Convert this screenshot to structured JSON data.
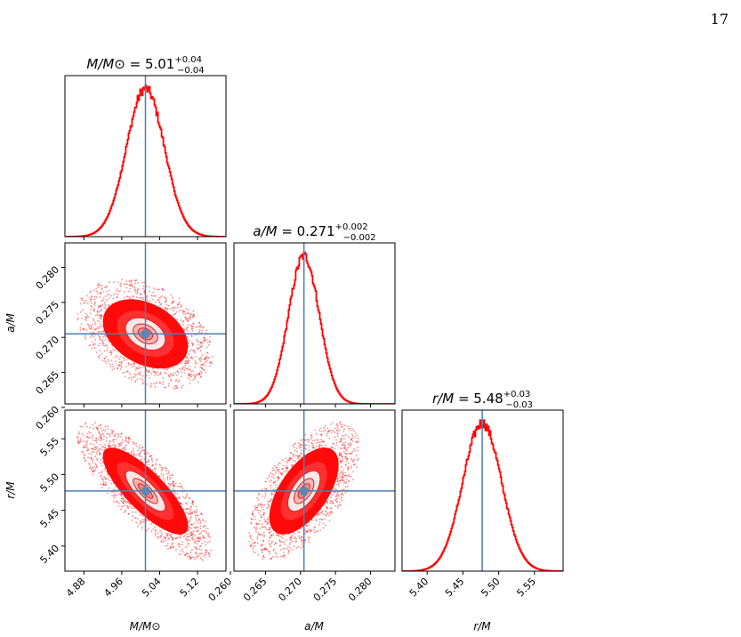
{
  "page": {
    "number": "17"
  },
  "colors": {
    "posterior": "#ff0000",
    "truth": "#4a7fb5",
    "truth_marker": "#5b86b5"
  },
  "chart_data": {
    "type": "corner",
    "parameters": [
      {
        "id": "M",
        "label": "M/M⊙",
        "title_name": "M/M⊙",
        "title_value": "5.01",
        "title_plus": "+0.04",
        "title_minus": "−0.04",
        "mean": 5.01,
        "sigma": 0.04,
        "truth": 5.01,
        "range": [
          4.84,
          5.18
        ],
        "ticks": [
          4.88,
          4.96,
          5.04,
          5.12
        ],
        "tick_labels": [
          "4.88",
          "4.96",
          "5.04",
          "5.12"
        ]
      },
      {
        "id": "a",
        "label": "a/M",
        "title_name": "a/M",
        "title_value": "0.271",
        "title_plus": "+0.002",
        "title_minus": "−0.002",
        "mean": 0.2705,
        "sigma": 0.0022,
        "truth": 0.2705,
        "range": [
          0.2605,
          0.2835
        ],
        "ticks": [
          0.26,
          0.265,
          0.27,
          0.275,
          0.28
        ],
        "tick_labels": [
          "0.260",
          "0.265",
          "0.270",
          "0.275",
          "0.280"
        ]
      },
      {
        "id": "r",
        "label": "r/M",
        "title_name": "r/M",
        "title_value": "5.48",
        "title_plus": "+0.03",
        "title_minus": "−0.03",
        "mean": 5.477,
        "sigma": 0.027,
        "truth": 5.477,
        "range": [
          5.365,
          5.59
        ],
        "ticks": [
          5.4,
          5.45,
          5.5,
          5.55
        ],
        "tick_labels": [
          "5.40",
          "5.45",
          "5.50",
          "5.55"
        ]
      }
    ],
    "correlations": {
      "a|M": -0.35,
      "r|M": -0.8,
      "r|a": 0.6
    }
  }
}
